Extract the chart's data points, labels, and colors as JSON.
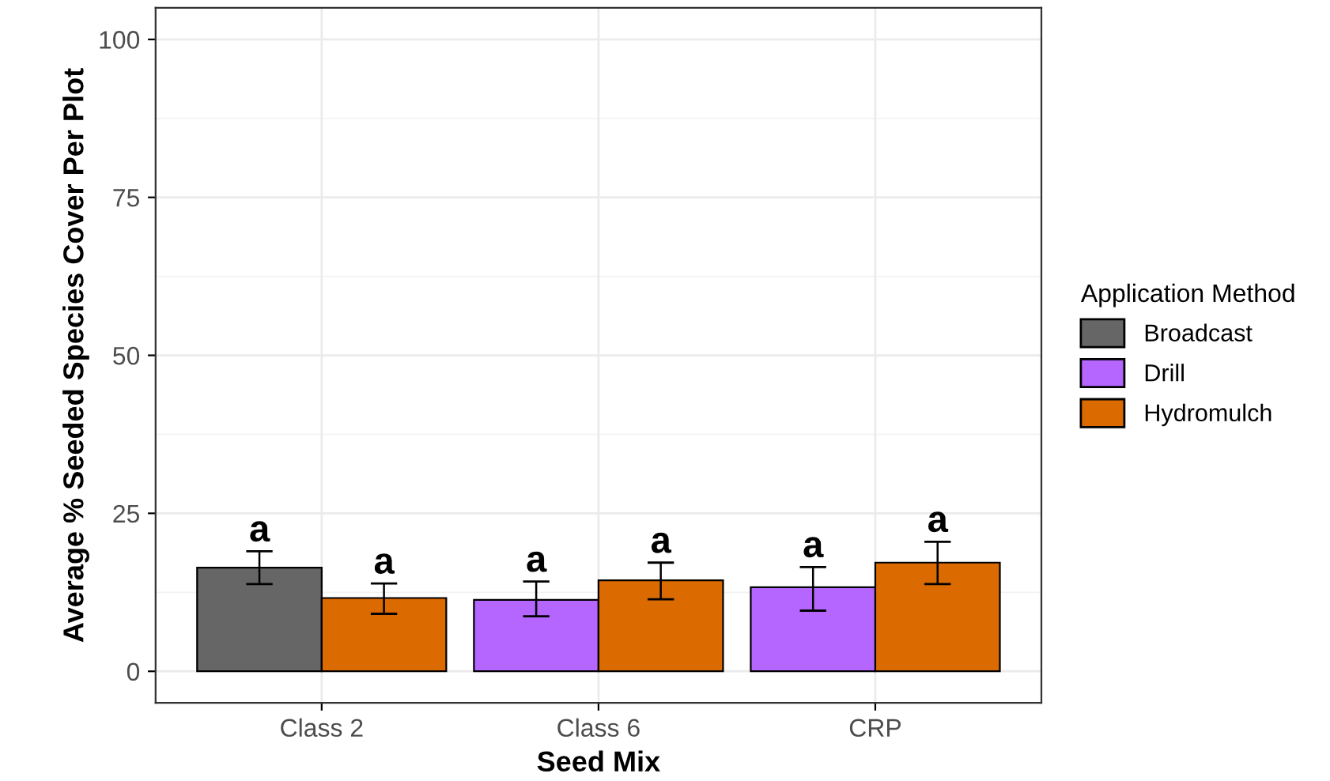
{
  "chart_data": {
    "type": "bar",
    "xlabel": "Seed Mix",
    "ylabel": "Average % Seeded Species Cover Per Plot",
    "legend_title": "Application Method",
    "categories": [
      "Class 2",
      "Class 6",
      "CRP"
    ],
    "series": [
      {
        "name": "Broadcast",
        "color": "#666666",
        "values": [
          16.4,
          null,
          null
        ],
        "errors": [
          [
            13.8,
            19.0
          ],
          null,
          null
        ],
        "value_labels": [
          "a",
          null,
          null
        ]
      },
      {
        "name": "Drill",
        "color": "#b566ff",
        "values": [
          null,
          11.3,
          13.3
        ],
        "errors": [
          null,
          [
            8.7,
            14.2
          ],
          [
            9.6,
            16.5
          ]
        ],
        "value_labels": [
          null,
          "a",
          "a"
        ]
      },
      {
        "name": "Hydromulch",
        "color": "#db6a00",
        "values": [
          11.6,
          14.4,
          17.2
        ],
        "errors": [
          [
            9.1,
            13.9
          ],
          [
            11.4,
            17.2
          ],
          [
            13.8,
            20.5
          ]
        ],
        "value_labels": [
          "a",
          "a",
          "a"
        ]
      }
    ],
    "ylim": [
      -5,
      105
    ],
    "yticks": [
      0,
      25,
      50,
      75,
      100
    ],
    "grid": true,
    "legend": "right"
  }
}
